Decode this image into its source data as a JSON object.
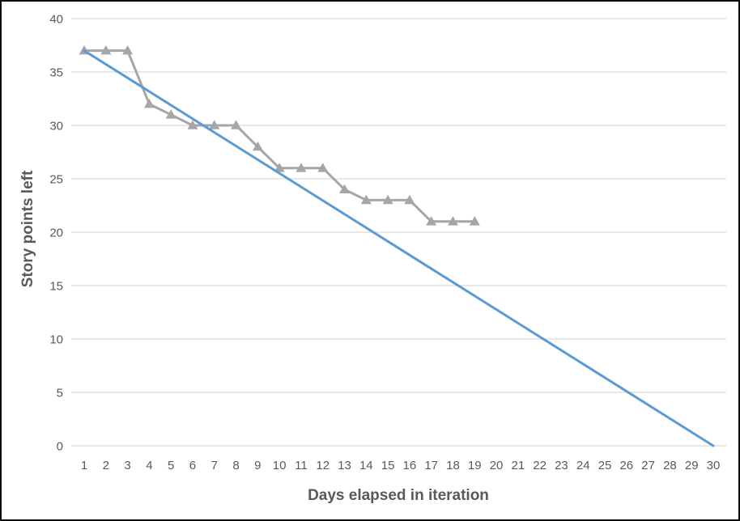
{
  "chart_data": {
    "type": "line",
    "title": "",
    "xlabel": "Days elapsed in iteration",
    "ylabel": "Story points left",
    "xlim": [
      1,
      30
    ],
    "ylim": [
      0,
      40
    ],
    "grid": "horizontal-only",
    "legend": "none",
    "background": "#ffffff",
    "border_color": "#0c0c0c",
    "gridline_color": "#d9d9d9",
    "tick_label_color": "#595959",
    "axis_title_color": "#595959",
    "xticks": [
      1,
      2,
      3,
      4,
      5,
      6,
      7,
      8,
      9,
      10,
      11,
      12,
      13,
      14,
      15,
      16,
      17,
      18,
      19,
      20,
      21,
      22,
      23,
      24,
      25,
      26,
      27,
      28,
      29,
      30
    ],
    "yticks": [
      0,
      5,
      10,
      15,
      20,
      25,
      30,
      35,
      40
    ],
    "series": [
      {
        "name": "actual-burndown",
        "color": "#a6a6a6",
        "marker": "triangle-up",
        "line_width": 3,
        "x": [
          1,
          2,
          3,
          4,
          5,
          6,
          7,
          8,
          9,
          10,
          11,
          12,
          13,
          14,
          15,
          16,
          17,
          18,
          19
        ],
        "y": [
          37,
          37,
          37,
          32,
          31,
          30,
          30,
          30,
          28,
          26,
          26,
          26,
          24,
          23,
          23,
          23,
          21,
          21,
          21
        ]
      },
      {
        "name": "ideal-burndown",
        "color": "#5b9bd5",
        "marker": "none",
        "line_width": 3,
        "x": [
          1,
          30
        ],
        "y": [
          37,
          0
        ]
      }
    ]
  }
}
